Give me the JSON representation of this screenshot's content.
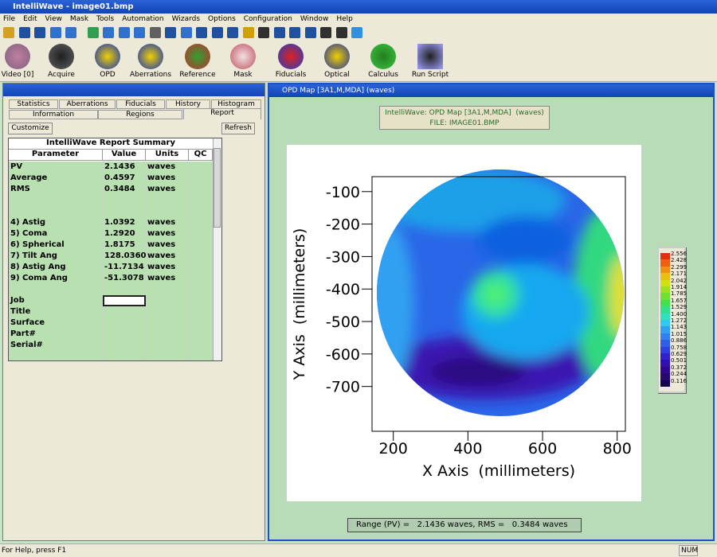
{
  "window": {
    "title": "IntelliWave - image01.bmp"
  },
  "menu": [
    "File",
    "Edit",
    "View",
    "Mask",
    "Tools",
    "Automation",
    "Wizards",
    "Options",
    "Configuration",
    "Window",
    "Help"
  ],
  "toolbar": [
    "Video [0]",
    "Acquire",
    "OPD",
    "Aberrations",
    "Reference",
    "Mask",
    "Fiducials",
    "Optical",
    "Calculus",
    "Run Script"
  ],
  "report_panel": {
    "tabs_row1": [
      "Statistics",
      "Aberrations",
      "Fiducials",
      "History",
      "Histogram"
    ],
    "tabs_row2": [
      "Information",
      "Regions",
      "Report"
    ],
    "customize_button": "Customize",
    "refresh_button": "Refresh",
    "table": {
      "title": "IntelliWave Report Summary",
      "headers": [
        "Parameter",
        "Value",
        "Units",
        "QC"
      ],
      "rows": [
        [
          "PV",
          "2.1436",
          "waves",
          null
        ],
        [
          "Average",
          "0.4597",
          "waves",
          null
        ],
        [
          "RMS",
          "0.3484",
          "waves",
          null
        ],
        [
          null,
          null,
          null,
          null
        ],
        [
          null,
          null,
          null,
          null
        ],
        [
          "4) Astig",
          "1.0392",
          "waves",
          null
        ],
        [
          "5) Coma",
          "1.2920",
          "waves",
          null
        ],
        [
          "6) Spherical",
          "1.8175",
          "waves",
          null
        ],
        [
          "7) Tilt Ang",
          "128.0360",
          "waves",
          null
        ],
        [
          "8) Astig Ang",
          "-11.7134",
          "waves",
          null
        ],
        [
          "9) Coma Ang",
          "-51.3078",
          "waves",
          null
        ],
        [
          null,
          null,
          null,
          null
        ],
        [
          "Job",
          null,
          null,
          null
        ],
        [
          "Title",
          null,
          null,
          null
        ],
        [
          "Surface",
          null,
          null,
          null
        ],
        [
          "Part#",
          null,
          null,
          null
        ],
        [
          "Serial#",
          null,
          null,
          null
        ],
        [
          null,
          null,
          null,
          null
        ]
      ]
    }
  },
  "opd_window": {
    "title": "OPD Map [3A1,M,MDA] (waves)",
    "info_line1": "IntelliWave: OPD Map [3A1,M,MDA]  (waves)",
    "info_line2": "FILE: IMAGE01.BMP",
    "plot": {
      "x_label": "X Axis  (millimeters)",
      "y_label": "Y Axis  (millimeters)",
      "xlim": [
        143,
        822
      ],
      "ylim": [
        -54,
        -838
      ],
      "xticks": [
        200,
        400,
        600,
        800
      ],
      "yticks": [
        -100,
        -200,
        -300,
        -400,
        -500,
        -600,
        -700
      ]
    },
    "colorbar": [
      "2.556",
      "2.428",
      "2.299",
      "2.171",
      "2.042",
      "1.914",
      "1.785",
      "1.657",
      "1.529",
      "1.400",
      "1.272",
      "1.143",
      "1.015",
      "0.886",
      "0.758",
      "0.629",
      "0.501",
      "0.372",
      "0.244",
      "0.116"
    ],
    "summary": "Range (PV) =   2.1436 waves, RMS =   0.3484 waves"
  },
  "status_bar": {
    "help": "For Help, press F1",
    "num": "NUM"
  }
}
